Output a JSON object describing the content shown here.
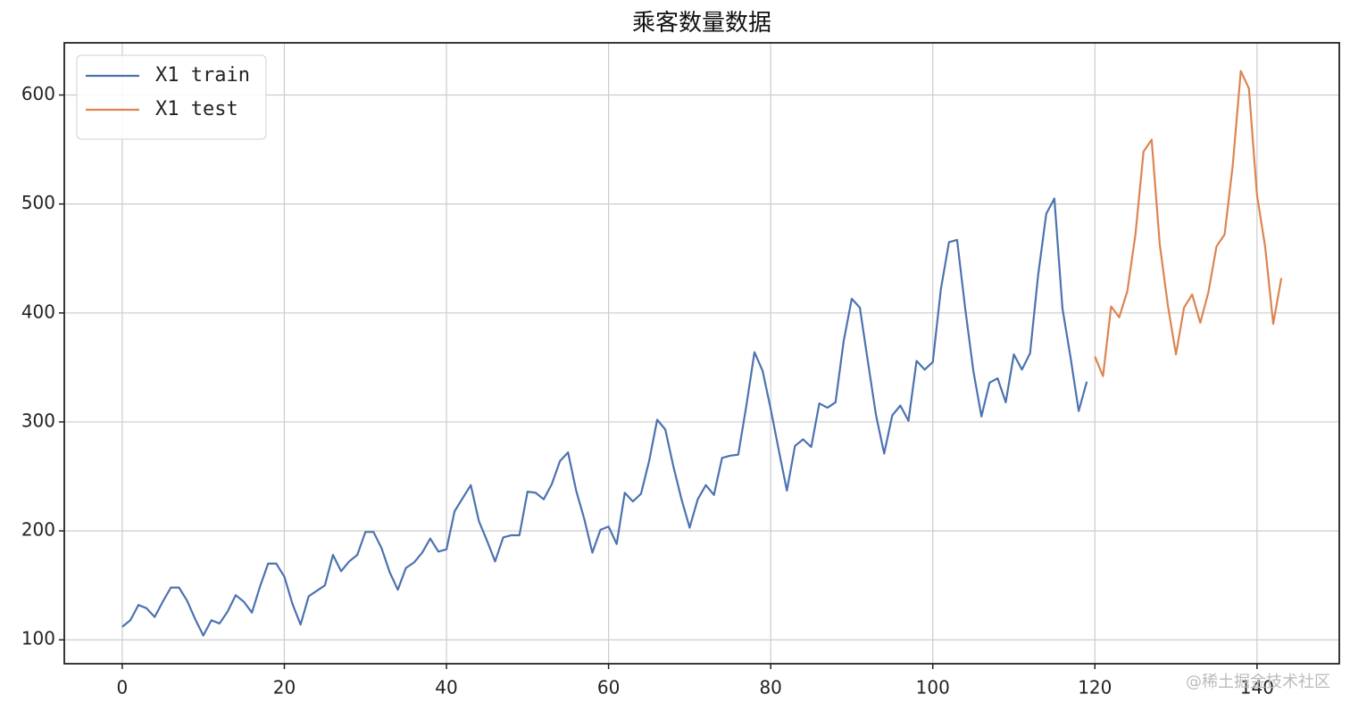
{
  "chart_data": {
    "type": "line",
    "title": "乘客数量数据",
    "series": [
      {
        "name": "X1 train",
        "color": "#4c72b0",
        "x": [
          0,
          1,
          2,
          3,
          4,
          5,
          6,
          7,
          8,
          9,
          10,
          11,
          12,
          13,
          14,
          15,
          16,
          17,
          18,
          19,
          20,
          21,
          22,
          23,
          24,
          25,
          26,
          27,
          28,
          29,
          30,
          31,
          32,
          33,
          34,
          35,
          36,
          37,
          38,
          39,
          40,
          41,
          42,
          43,
          44,
          45,
          46,
          47,
          48,
          49,
          50,
          51,
          52,
          53,
          54,
          55,
          56,
          57,
          58,
          59,
          60,
          61,
          62,
          63,
          64,
          65,
          66,
          67,
          68,
          69,
          70,
          71,
          72,
          73,
          74,
          75,
          76,
          77,
          78,
          79,
          80,
          81,
          82,
          83,
          84,
          85,
          86,
          87,
          88,
          89,
          90,
          91,
          92,
          93,
          94,
          95,
          96,
          97,
          98,
          99,
          100,
          101,
          102,
          103,
          104,
          105,
          106,
          107,
          108,
          109,
          110,
          111,
          112,
          113,
          114,
          115,
          116,
          117,
          118,
          119
        ],
        "values": [
          112,
          118,
          132,
          129,
          121,
          135,
          148,
          148,
          136,
          119,
          104,
          118,
          115,
          126,
          141,
          135,
          125,
          149,
          170,
          170,
          158,
          133,
          114,
          140,
          145,
          150,
          178,
          163,
          172,
          178,
          199,
          199,
          184,
          162,
          146,
          166,
          171,
          180,
          193,
          181,
          183,
          218,
          230,
          242,
          209,
          191,
          172,
          194,
          196,
          196,
          236,
          235,
          229,
          243,
          264,
          272,
          237,
          211,
          180,
          201,
          204,
          188,
          235,
          227,
          234,
          264,
          302,
          293,
          259,
          229,
          203,
          229,
          242,
          233,
          267,
          269,
          270,
          315,
          364,
          347,
          312,
          274,
          237,
          278,
          284,
          277,
          317,
          313,
          318,
          374,
          413,
          405,
          355,
          306,
          271,
          306,
          315,
          301,
          356,
          348,
          355,
          422,
          465,
          467,
          404,
          347,
          305,
          336,
          340,
          318,
          362,
          348,
          363,
          435,
          491,
          505,
          404,
          359,
          310,
          337
        ]
      },
      {
        "name": "X1 test",
        "color": "#dd8452",
        "x": [
          120,
          121,
          122,
          123,
          124,
          125,
          126,
          127,
          128,
          129,
          130,
          131,
          132,
          133,
          134,
          135,
          136,
          137,
          138,
          139,
          140,
          141,
          142,
          143
        ],
        "values": [
          360,
          342,
          406,
          396,
          420,
          472,
          548,
          559,
          463,
          407,
          362,
          405,
          417,
          391,
          419,
          461,
          472,
          535,
          622,
          606,
          508,
          461,
          390,
          432
        ]
      }
    ],
    "xlim": [
      -7.15,
      150.15
    ],
    "xticks": [
      0,
      20,
      40,
      60,
      80,
      100,
      120,
      140
    ],
    "ylim": [
      78.1,
      647.9
    ],
    "yticks": [
      100,
      200,
      300,
      400,
      500,
      600
    ],
    "grid": true,
    "legend": "upper left",
    "watermark": "@稀土掘金技术社区"
  }
}
